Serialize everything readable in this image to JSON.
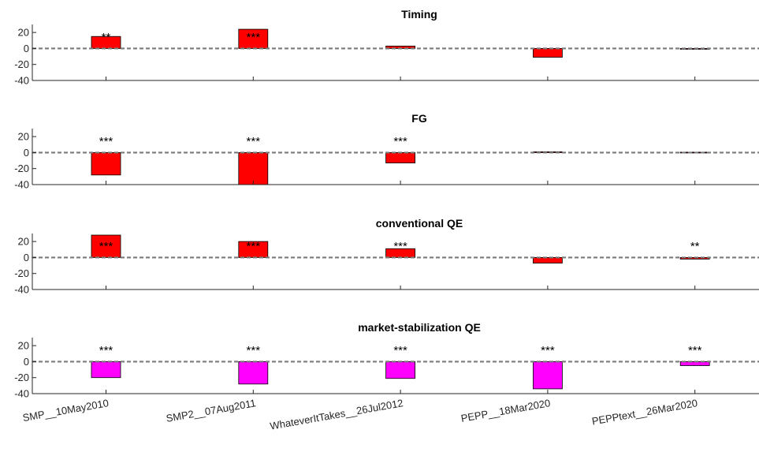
{
  "chart_data": {
    "type": "bar",
    "categories": [
      "SMP__10May2010",
      "SMP2__07Aug2011",
      "WhateverItTakes__26Jul2012",
      "PEPP__18Mar2020",
      "PEPPtext__26Mar2020"
    ],
    "ylim": [
      -40,
      30
    ],
    "yticks": [
      20,
      0,
      -20,
      -40
    ],
    "grid": false,
    "zero_line": "dashed",
    "panels": [
      {
        "title": "Timing",
        "color": "#ff0000",
        "values": [
          15,
          24,
          3,
          -11,
          -1
        ],
        "significance": [
          "**",
          "***",
          "",
          "",
          ""
        ]
      },
      {
        "title": "FG",
        "color": "#ff0000",
        "values": [
          -28,
          -40,
          -13,
          1,
          0.5
        ],
        "significance": [
          "***",
          "***",
          "***",
          "",
          ""
        ]
      },
      {
        "title": "conventional QE",
        "color": "#ff0000",
        "values": [
          28,
          20,
          11,
          -7,
          -2
        ],
        "significance": [
          "***",
          "***",
          "***",
          "",
          "**"
        ]
      },
      {
        "title": "market-stabilization QE",
        "color": "#ff00ff",
        "values": [
          -20,
          -28,
          -21,
          -34,
          -5
        ],
        "significance": [
          "***",
          "***",
          "***",
          "***",
          "***"
        ]
      }
    ]
  }
}
